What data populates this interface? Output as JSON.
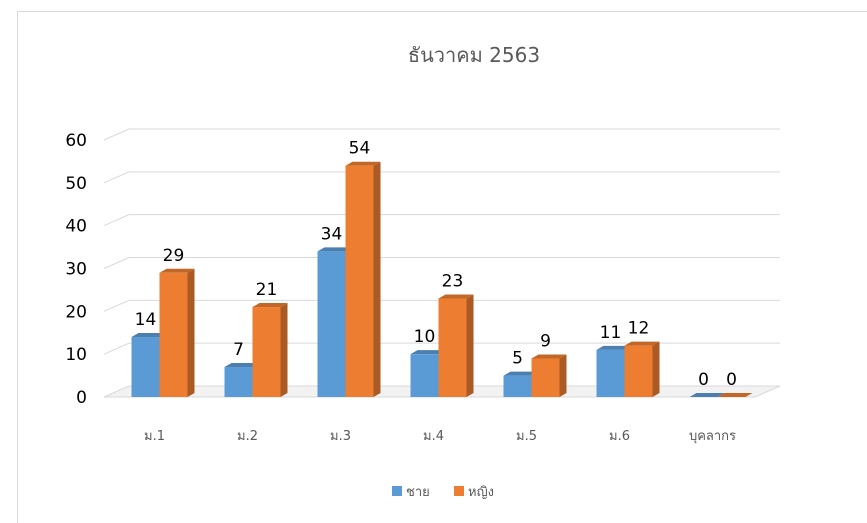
{
  "chart_data": {
    "type": "bar",
    "title": "ธันวาคม 2563",
    "categories": [
      "ม.1",
      "ม.2",
      "ม.3",
      "ม.4",
      "ม.5",
      "ม.6",
      "บุคลากร"
    ],
    "series": [
      {
        "name": "ชาย",
        "values": [
          14,
          7,
          34,
          10,
          5,
          11,
          0
        ],
        "color": "#5b9bd5"
      },
      {
        "name": "หญิง",
        "values": [
          29,
          21,
          54,
          23,
          9,
          12,
          0
        ],
        "color": "#ed7d31"
      }
    ],
    "yticks": [
      "0",
      "10",
      "20",
      "30",
      "40",
      "50",
      "60"
    ],
    "ylim": [
      0,
      60
    ],
    "grid": true,
    "legend": "bottom",
    "style": "3d-column"
  }
}
